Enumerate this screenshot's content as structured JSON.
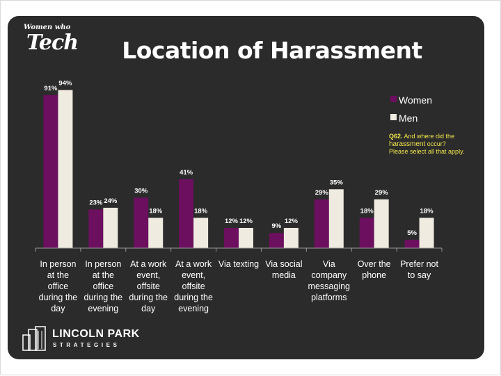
{
  "logo_top": {
    "line1": "Women who",
    "line2": "Tech"
  },
  "logo_bottom": {
    "name": "LINCOLN PARK",
    "sub": "STRATEGIES"
  },
  "note": {
    "q": "Q62.",
    "line1": " And where did the",
    "line2": "harassment",
    "line3": " occur?",
    "line4": "Please select all that apply."
  },
  "colors": {
    "women": "#6b0f5e",
    "men": "#efebe0",
    "panel": "#2b2b2b",
    "axis": "#999999"
  },
  "chart_data": {
    "type": "bar",
    "title": "Location of Harassment",
    "legend_position": "right",
    "categories": [
      "In person\nat the\noffice\nduring the\nday",
      "In person\nat the\noffice\nduring the\nevening",
      "At a work\nevent,\noffsite\nduring the\nday",
      "At a work\nevent,\noffsite\nduring the\nevening",
      "Via texting",
      "Via social\nmedia",
      "Via\ncompany\nmessaging\nplatforms",
      "Over the\nphone",
      "Prefer not\nto say"
    ],
    "series": [
      {
        "name": "Women",
        "values": [
          91,
          23,
          30,
          41,
          12,
          9,
          29,
          18,
          5
        ],
        "labels": [
          "91%",
          "23%",
          "30%",
          "41%",
          "12%",
          "9%",
          "29%",
          "18%",
          "5%"
        ]
      },
      {
        "name": "Men",
        "values": [
          94,
          24,
          18,
          18,
          12,
          12,
          35,
          29,
          18
        ],
        "labels": [
          "94%",
          "24%",
          "18%",
          "18%",
          "12%",
          "12%",
          "35%",
          "29%",
          "18%"
        ]
      }
    ],
    "ylim": [
      0,
      100
    ],
    "grid": false
  }
}
